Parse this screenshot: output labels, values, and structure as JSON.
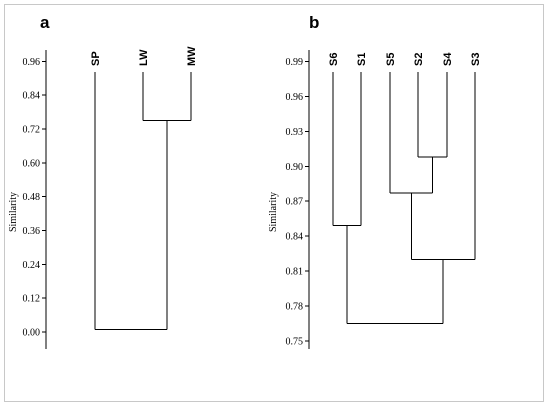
{
  "chart_data": [
    {
      "type": "dendrogram",
      "panel_label": "a",
      "ylabel": "Similarity",
      "ylim": [
        -0.06,
        1.0
      ],
      "yticks": [
        "0.00",
        "0.12",
        "0.24",
        "0.36",
        "0.48",
        "0.60",
        "0.72",
        "0.84",
        "0.96"
      ],
      "leaves": [
        "SP",
        "LW",
        "MW"
      ],
      "merges": [
        {
          "left": "LW",
          "right": "MW",
          "similarity": 0.75
        },
        {
          "left": "SP",
          "right": "LW+MW",
          "similarity": 0.01
        }
      ]
    },
    {
      "type": "dendrogram",
      "panel_label": "b",
      "ylabel": "Similarity",
      "ylim": [
        0.743,
        1.0
      ],
      "yticks": [
        "0.75",
        "0.78",
        "0.81",
        "0.84",
        "0.87",
        "0.90",
        "0.93",
        "0.96",
        "0.99"
      ],
      "leaves": [
        "S6",
        "S1",
        "S5",
        "S2",
        "S4",
        "S3"
      ],
      "merges": [
        {
          "left": "S2",
          "right": "S4",
          "similarity": 0.908
        },
        {
          "left": "S6",
          "right": "S1",
          "similarity": 0.849
        },
        {
          "left": "S5",
          "right": "S2+S4",
          "similarity": 0.877
        },
        {
          "left": "S5+S2+S4",
          "right": "S3",
          "similarity": 0.82
        },
        {
          "left": "S6+S1",
          "right": "S5+S2+S4+S3",
          "similarity": 0.765
        }
      ]
    }
  ]
}
